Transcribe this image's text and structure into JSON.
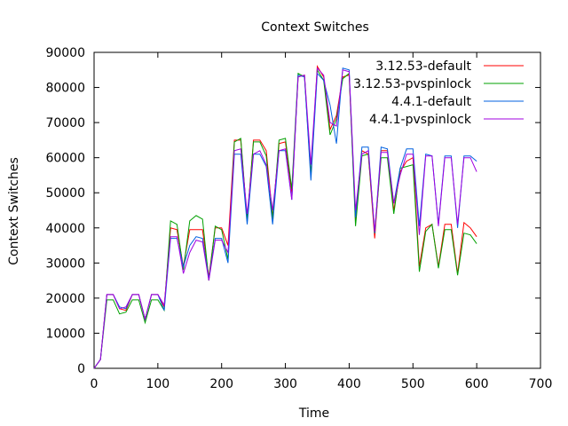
{
  "chart_data": {
    "type": "line",
    "title": "Context Switches",
    "xlabel": "Time",
    "ylabel": "Context Switches",
    "xlim": [
      0,
      700
    ],
    "ylim": [
      0,
      90000
    ],
    "xticks": [
      0,
      100,
      200,
      300,
      400,
      500,
      600,
      700
    ],
    "yticks": [
      0,
      10000,
      20000,
      30000,
      40000,
      50000,
      60000,
      70000,
      80000,
      90000
    ],
    "grid": false,
    "legend_position": "top-right",
    "x": [
      0,
      10,
      20,
      30,
      40,
      50,
      60,
      70,
      80,
      90,
      100,
      110,
      120,
      130,
      140,
      150,
      160,
      170,
      180,
      190,
      200,
      210,
      220,
      230,
      240,
      250,
      260,
      270,
      280,
      290,
      300,
      310,
      320,
      330,
      340,
      350,
      360,
      370,
      380,
      390,
      400,
      410,
      420,
      430,
      440,
      450,
      460,
      470,
      480,
      490,
      500,
      510,
      520,
      530,
      540,
      550,
      560,
      570,
      580,
      590,
      600
    ],
    "series": [
      {
        "name": "3.12.53-default",
        "color": "#ff0000",
        "values": [
          0,
          2500,
          21000,
          21000,
          17000,
          16500,
          21000,
          21000,
          14000,
          21000,
          21000,
          17500,
          40000,
          39500,
          29000,
          39500,
          39500,
          39500,
          26000,
          40000,
          40000,
          35000,
          65000,
          65000,
          42000,
          65000,
          65000,
          62000,
          43000,
          64000,
          64500,
          50000,
          83000,
          83500,
          55000,
          86000,
          83000,
          68000,
          72000,
          83000,
          83500,
          42000,
          62000,
          61000,
          37000,
          62000,
          62000,
          45000,
          56000,
          59000,
          60000,
          29000,
          40000,
          41000,
          29000,
          41000,
          41000,
          27000,
          41500,
          40000,
          37500
        ]
      },
      {
        "name": "3.12.53-pvspinlock",
        "color": "#00a000",
        "values": [
          0,
          2500,
          19500,
          19500,
          15500,
          16000,
          19500,
          19500,
          13000,
          19500,
          19500,
          16500,
          42000,
          41000,
          28000,
          42000,
          43500,
          42500,
          25000,
          40500,
          39500,
          31000,
          64500,
          65500,
          42000,
          64500,
          64500,
          60500,
          42500,
          65000,
          65500,
          51000,
          84000,
          83000,
          55000,
          85000,
          82000,
          66500,
          71000,
          82500,
          84000,
          40500,
          60500,
          61000,
          38500,
          60000,
          60000,
          44000,
          57000,
          57500,
          58000,
          27500,
          39000,
          41000,
          28500,
          39500,
          39500,
          26500,
          38500,
          38000,
          35500
        ]
      },
      {
        "name": "4.4.1-default",
        "color": "#0060e0",
        "values": [
          0,
          2500,
          21000,
          21000,
          17500,
          17000,
          21000,
          21000,
          14000,
          21000,
          21000,
          16500,
          37000,
          37000,
          29000,
          35000,
          37500,
          37000,
          25500,
          37000,
          37000,
          30000,
          61000,
          61000,
          41000,
          61000,
          61000,
          57500,
          41000,
          62000,
          62000,
          48000,
          83500,
          83000,
          53500,
          84000,
          82000,
          75000,
          64000,
          85500,
          85000,
          43000,
          63000,
          63000,
          38500,
          63000,
          62500,
          47000,
          57000,
          62500,
          62500,
          40500,
          61000,
          60500,
          41000,
          60500,
          60500,
          40000,
          60500,
          60500,
          59000
        ]
      },
      {
        "name": "4.4.1-pvspinlock",
        "color": "#a000e0",
        "values": [
          0,
          2500,
          21000,
          21000,
          17000,
          17500,
          21000,
          21000,
          14000,
          21000,
          21000,
          18000,
          37500,
          37500,
          27000,
          33000,
          36500,
          36000,
          25000,
          36500,
          36500,
          33000,
          62000,
          62500,
          44000,
          61000,
          62000,
          58000,
          45000,
          62000,
          62500,
          48000,
          83000,
          83500,
          58000,
          85500,
          83500,
          70000,
          69000,
          85000,
          84500,
          45000,
          61000,
          62000,
          39000,
          61500,
          61500,
          47000,
          55000,
          61000,
          61000,
          38000,
          60500,
          60500,
          40500,
          60000,
          60000,
          41000,
          60000,
          60000,
          56000
        ]
      }
    ]
  }
}
